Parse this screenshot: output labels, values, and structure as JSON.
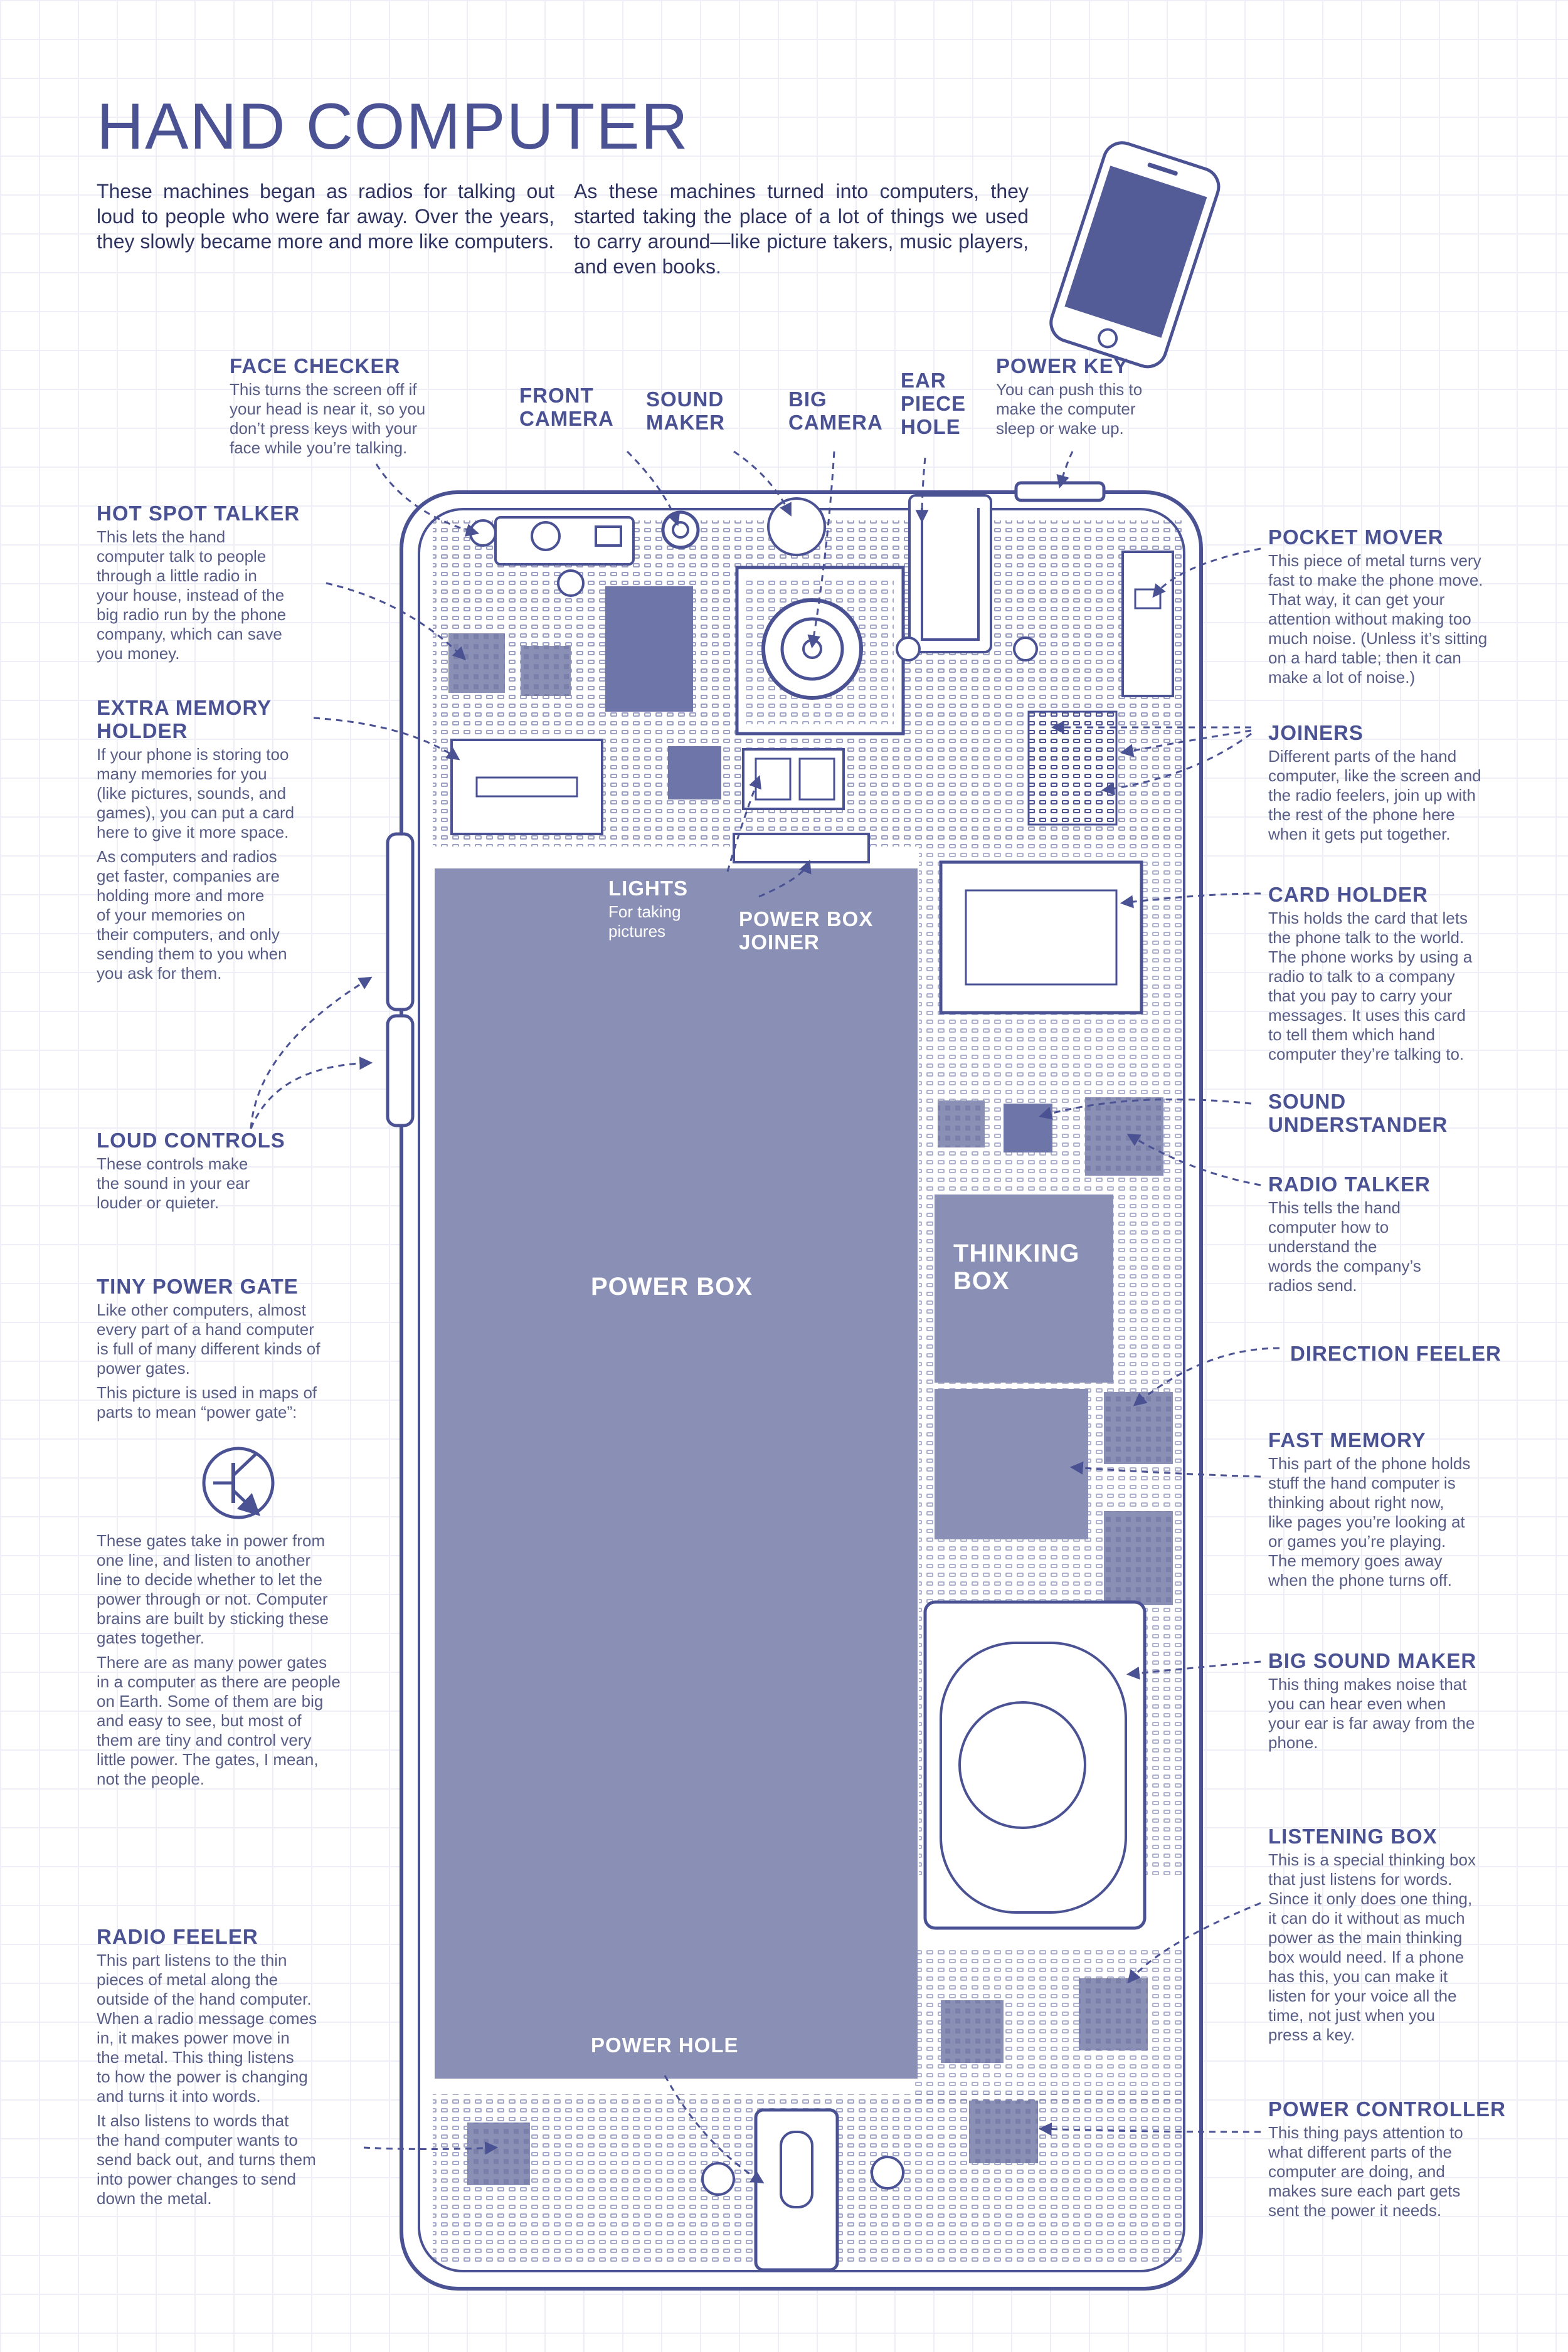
{
  "title": "HAND COMPUTER",
  "intro": {
    "left": "These machines began as radios for talking out loud to people who were far away. Over the years, they slowly became more and more like computers.",
    "right": "As these machines turned into computers, they started taking the place of a lot of things we used to carry around—like picture takers, music players, and even books."
  },
  "colors": {
    "ink": "#4a5294",
    "fill": "#8a8fb5",
    "text": "#585d86"
  },
  "labels": {
    "face_checker": {
      "title": "FACE CHECKER",
      "desc": "This turns the screen off if\nyour head is near it, so you\ndon’t press keys with your\nface while you’re talking."
    },
    "front_camera": {
      "title": "FRONT\nCAMERA"
    },
    "sound_maker": {
      "title": "SOUND\nMAKER"
    },
    "big_camera": {
      "title": "BIG\nCAMERA"
    },
    "ear_piece_hole": {
      "title": "EAR\nPIECE\nHOLE"
    },
    "power_key": {
      "title": "POWER KEY",
      "desc": "You can push this to\nmake the computer\nsleep or wake up."
    },
    "hot_spot_talker": {
      "title": "HOT SPOT TALKER",
      "desc": "This lets the hand\ncomputer talk to people\nthrough a little radio in\nyour house, instead of the\nbig radio run by the phone\ncompany, which can save\nyou money."
    },
    "extra_memory_holder": {
      "title": "EXTRA MEMORY\nHOLDER",
      "desc1": "If your phone is storing too\nmany memories for you\n(like pictures, sounds, and\ngames), you can put a card\nhere to give it more space.",
      "desc2": "As computers and radios\nget faster, companies are\nholding more and more\nof your memories on\ntheir computers, and only\nsending them to you when\nyou ask for them."
    },
    "loud_controls": {
      "title": "LOUD CONTROLS",
      "desc": "These controls make\nthe sound in your ear\nlouder or quieter."
    },
    "tiny_power_gate": {
      "title": "TINY POWER GATE",
      "desc1": "Like other computers, almost\nevery part of a hand computer\nis full of many different kinds of\npower gates.",
      "desc2": "This picture is used in maps of\nparts to mean “power gate”:",
      "desc3": "These gates take in power from\none line, and listen to another\nline to decide whether to let the\npower through or not. Computer\nbrains are built by sticking these\ngates together.",
      "desc4": "There are as many power gates\nin a computer as there are people\non Earth. Some of them are big\nand easy to see, but most of\nthem are tiny and control very\nlittle power. The gates, I mean,\nnot the people."
    },
    "radio_feeler": {
      "title": "RADIO FEELER",
      "desc1": "This part listens to the thin\npieces of metal along the\noutside of the hand computer.\nWhen a radio message comes\nin, it makes power move in\nthe metal. This thing listens\nto how the power is changing\nand turns it into words.",
      "desc2": "It also listens to words that\nthe hand computer wants to\nsend back out, and turns them\ninto power changes to send\ndown the metal."
    },
    "pocket_mover": {
      "title": "POCKET MOVER",
      "desc": "This piece of metal turns very\nfast to make the phone move.\nThat way, it can get your\nattention without making too\nmuch noise. (Unless it’s sitting\non a hard table; then it can\nmake a lot of noise.)"
    },
    "joiners": {
      "title": "JOINERS",
      "desc": "Different parts of the hand\ncomputer, like the screen and\nthe radio feelers, join up with\nthe rest of the phone here\nwhen it gets put together."
    },
    "card_holder": {
      "title": "CARD HOLDER",
      "desc": "This holds the card that lets\nthe phone talk to the world.\nThe phone works by using a\nradio to talk to a company\nthat you pay to carry your\nmessages. It uses this card\nto tell them which hand\ncomputer they’re talking to."
    },
    "sound_understander": {
      "title": "SOUND\nUNDERSTANDER"
    },
    "radio_talker": {
      "title": "RADIO TALKER",
      "desc": "This tells the hand\ncomputer how to\nunderstand the\nwords the company’s\nradios send."
    },
    "direction_feeler": {
      "title": "DIRECTION FEELER"
    },
    "fast_memory": {
      "title": "FAST MEMORY",
      "desc": "This part of the phone holds\nstuff the hand computer is\nthinking about right now,\nlike pages you’re looking at\nor games you’re playing.\nThe memory goes away\nwhen the phone turns off."
    },
    "big_sound_maker": {
      "title": "BIG SOUND MAKER",
      "desc": "This thing makes noise that\nyou can hear even when\nyour ear is far away from the\nphone."
    },
    "listening_box": {
      "title": "LISTENING BOX",
      "desc": "This is a special thinking box\nthat just listens for words.\nSince it only does one thing,\nit can do it without as much\npower as the main thinking\nbox would need. If a phone\nhas this, you can make it\nlisten for your voice all the\ntime, not just when you\npress a key."
    },
    "power_controller": {
      "title": "POWER CONTROLLER",
      "desc": "This thing pays attention to\nwhat different parts of the\ncomputer are doing, and\nmakes sure each part gets\nsent the power it needs."
    },
    "lights": {
      "title": "LIGHTS",
      "desc": "For taking\npictures"
    },
    "power_box_joiner": {
      "title": "POWER BOX\nJOINER"
    },
    "power_box": {
      "title": "POWER BOX"
    },
    "thinking_box": {
      "title": "THINKING\nBOX"
    },
    "power_hole": {
      "title": "POWER HOLE"
    }
  }
}
